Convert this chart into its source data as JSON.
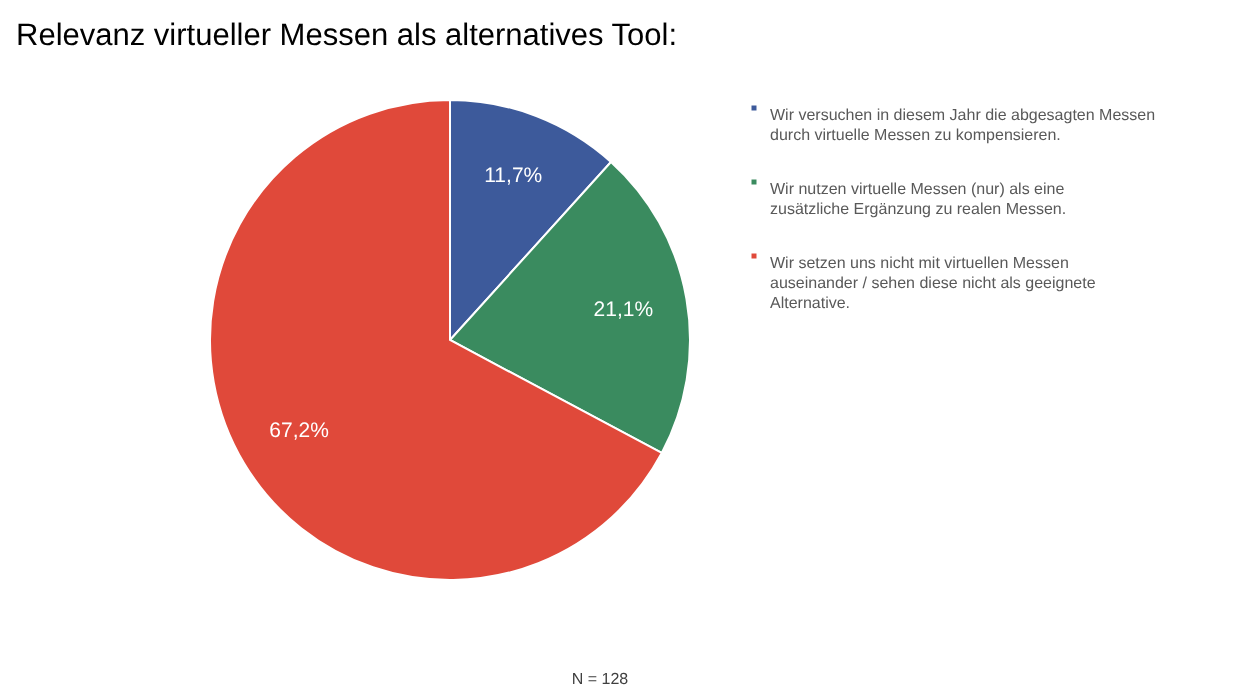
{
  "chart_data": {
    "type": "pie",
    "title": "Relevanz virtueller Messen als alternatives Tool:",
    "categories": [
      "Wir versuchen in diesem Jahr die abgesagten Messen durch virtuelle Messen zu kompensieren.",
      "Wir nutzen virtuelle Messen (nur) als eine zusätzliche Ergänzung zu realen Messen.",
      "Wir setzen uns nicht mit virtuellen Messen auseinander / sehen diese nicht als geeignete Alternative."
    ],
    "values": [
      11.7,
      21.1,
      67.2
    ],
    "colors": [
      "#3d5a9b",
      "#3a8b5f",
      "#e0493a"
    ],
    "value_labels": [
      "11,7%",
      "21,1%",
      "67,2%"
    ],
    "legend": "right",
    "annotations": [
      "N = 128"
    ]
  }
}
